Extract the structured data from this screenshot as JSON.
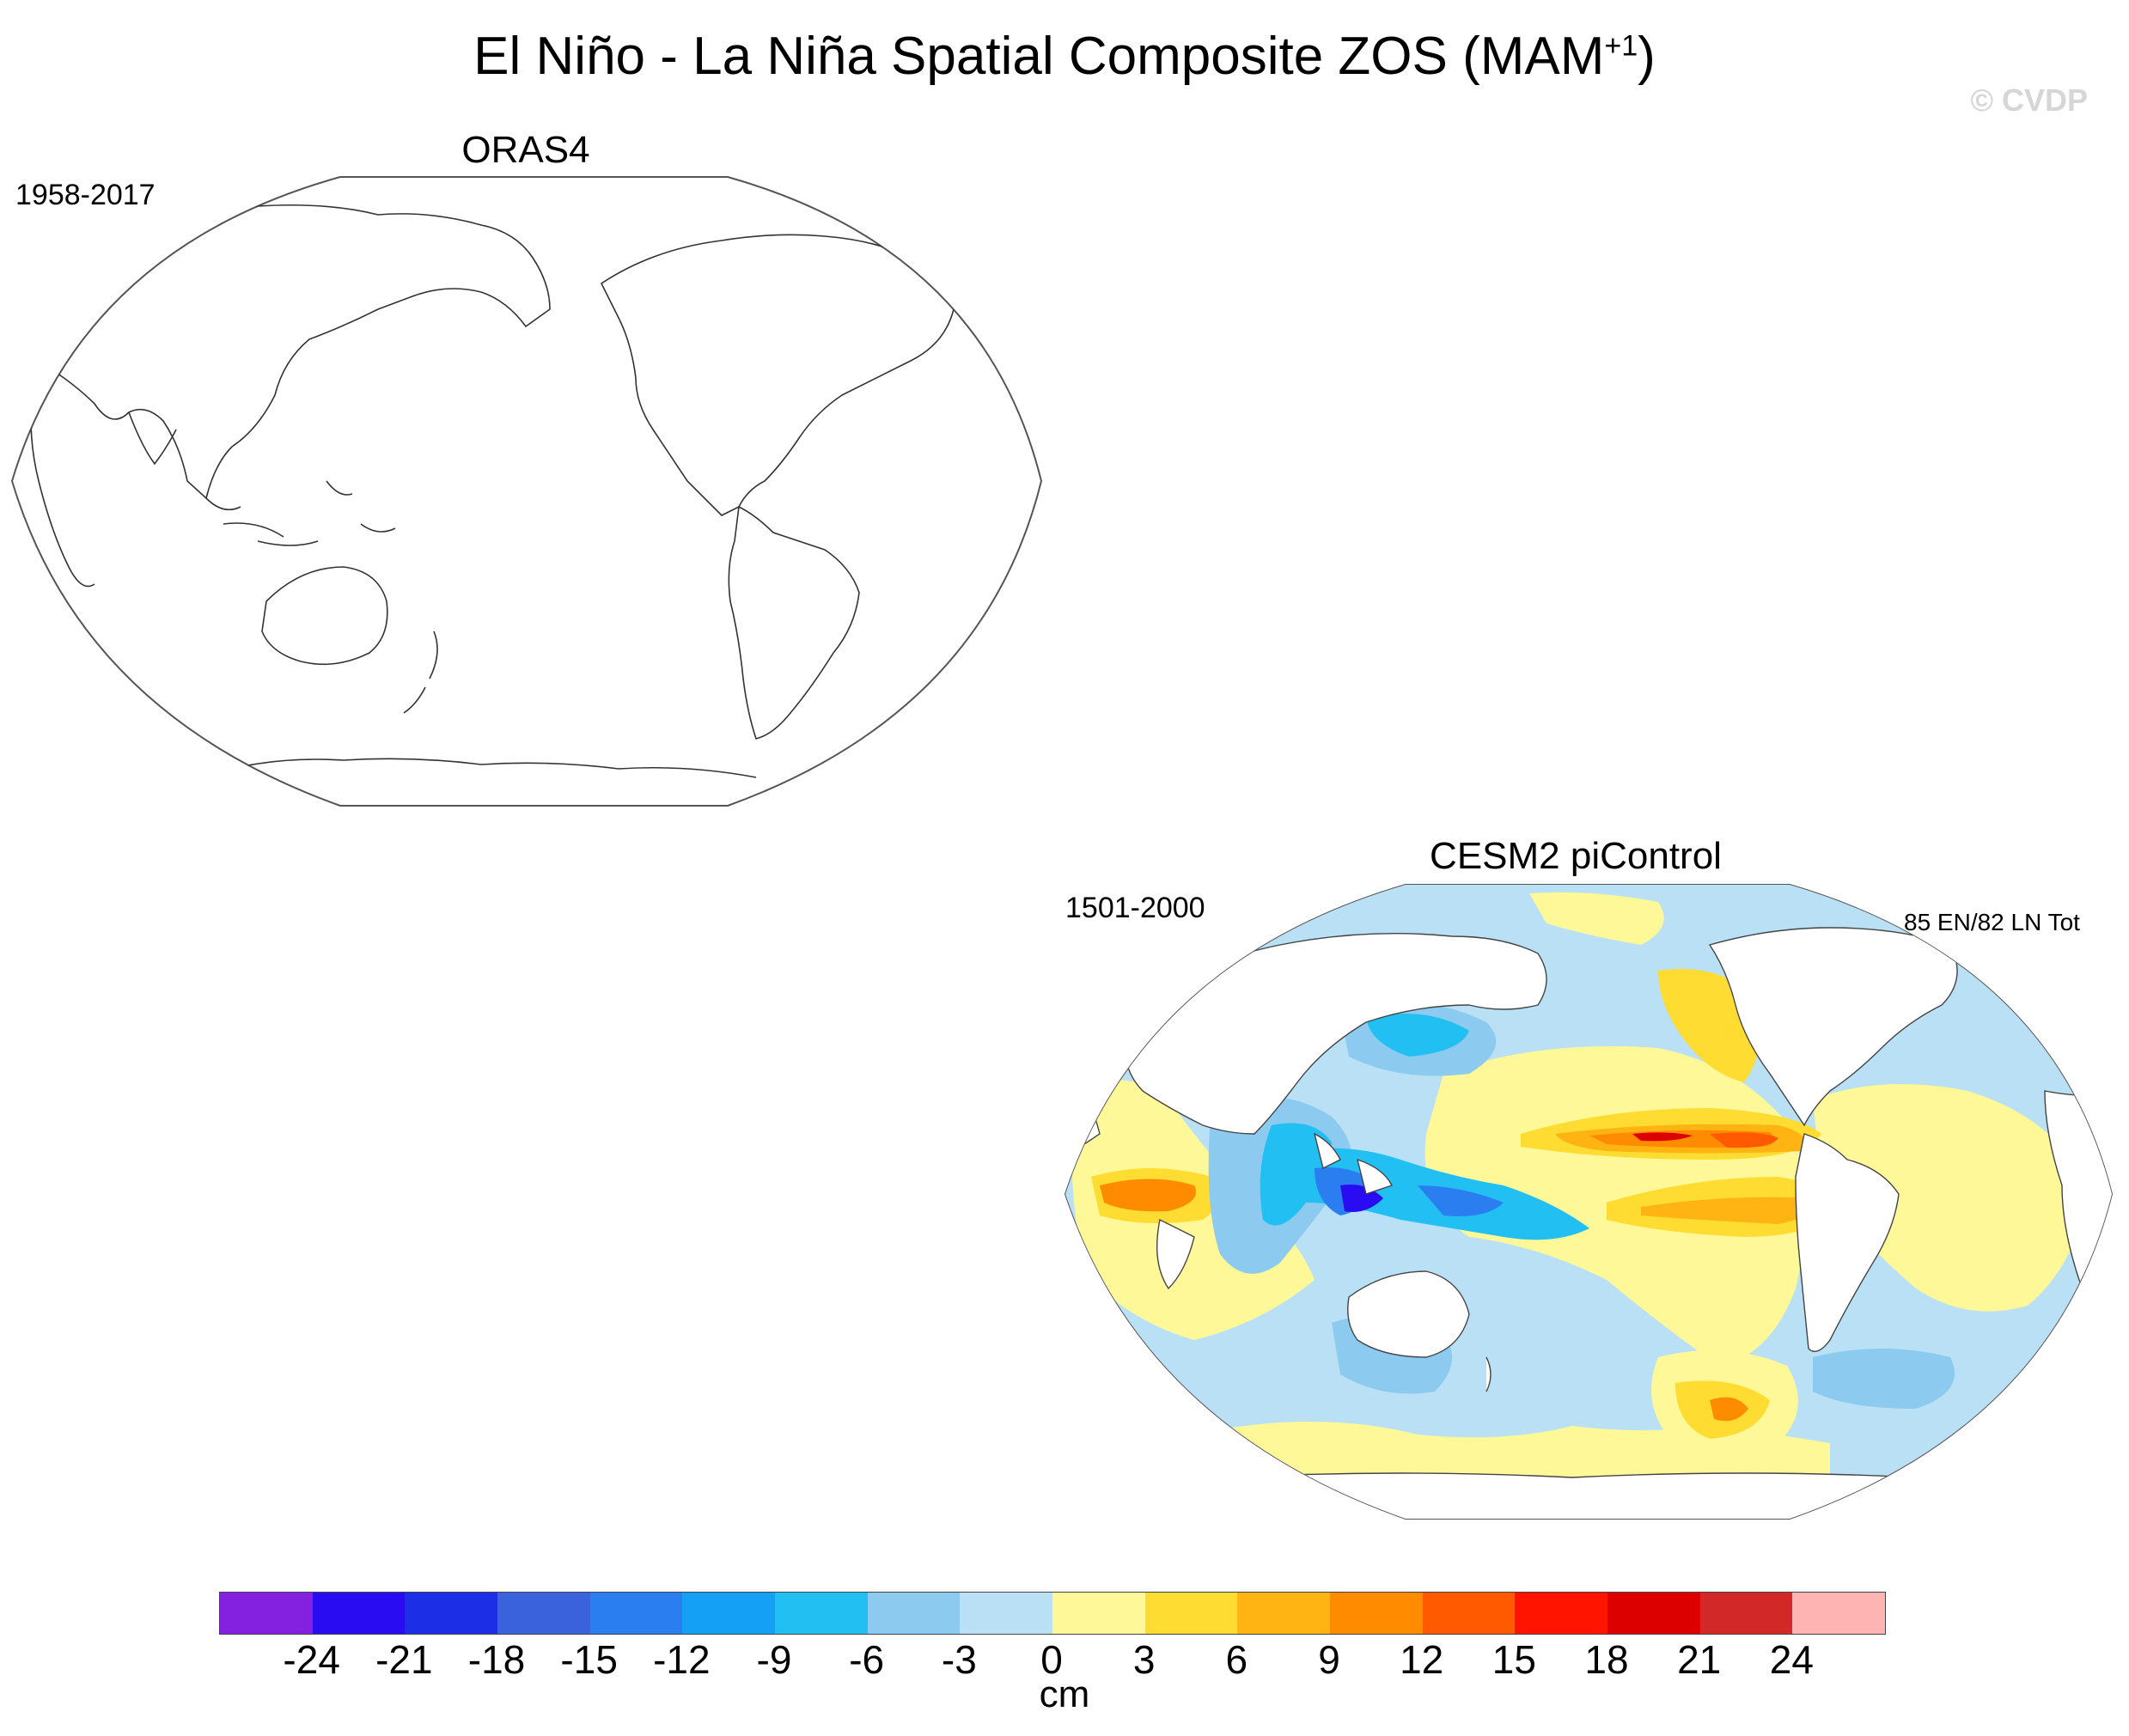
{
  "title": {
    "main": "El Niño - La Niña Spatial Composite ZOS (MAM",
    "superscript": "+1",
    "close": ")"
  },
  "copyright": "© CVDP",
  "panels": [
    {
      "name": "ORAS4",
      "period": "1958-2017",
      "event_count": "",
      "has_field": false
    },
    {
      "name": "CESM2 piControl",
      "period": "1501-2000",
      "event_count": "85 EN/82 LN Tot",
      "has_field": true
    }
  ],
  "colorbar": {
    "unit": "cm",
    "tick_labels": [
      "-24",
      "-21",
      "-18",
      "-15",
      "-12",
      "-9",
      "-6",
      "-3",
      "0",
      "3",
      "6",
      "9",
      "12",
      "15",
      "18",
      "21",
      "24"
    ],
    "colors": [
      "#8420e0",
      "#2a0cf2",
      "#1c2ee6",
      "#3a62dc",
      "#2a7ef0",
      "#14a0f4",
      "#22c0f2",
      "#8ccaf0",
      "#b9e0f4",
      "#fff898",
      "#ffdc32",
      "#ffb414",
      "#ff8c00",
      "#ff5a00",
      "#ff1400",
      "#dc0000",
      "#d22828",
      "#ffb4b4"
    ]
  },
  "map_features": {
    "projection": "Robinson, Pacific-centred",
    "field_blobs": [
      {
        "name": "north-pacific-positive-band",
        "value": 18
      },
      {
        "name": "equatorial-pacific-positive-band",
        "value": 12
      },
      {
        "name": "indian-ocean-positive-band",
        "value": 15
      },
      {
        "name": "maritime-continent-negative",
        "value": -21
      },
      {
        "name": "north-pacific-negative",
        "value": -9
      },
      {
        "name": "southern-ocean-positive",
        "value": 15
      }
    ]
  }
}
